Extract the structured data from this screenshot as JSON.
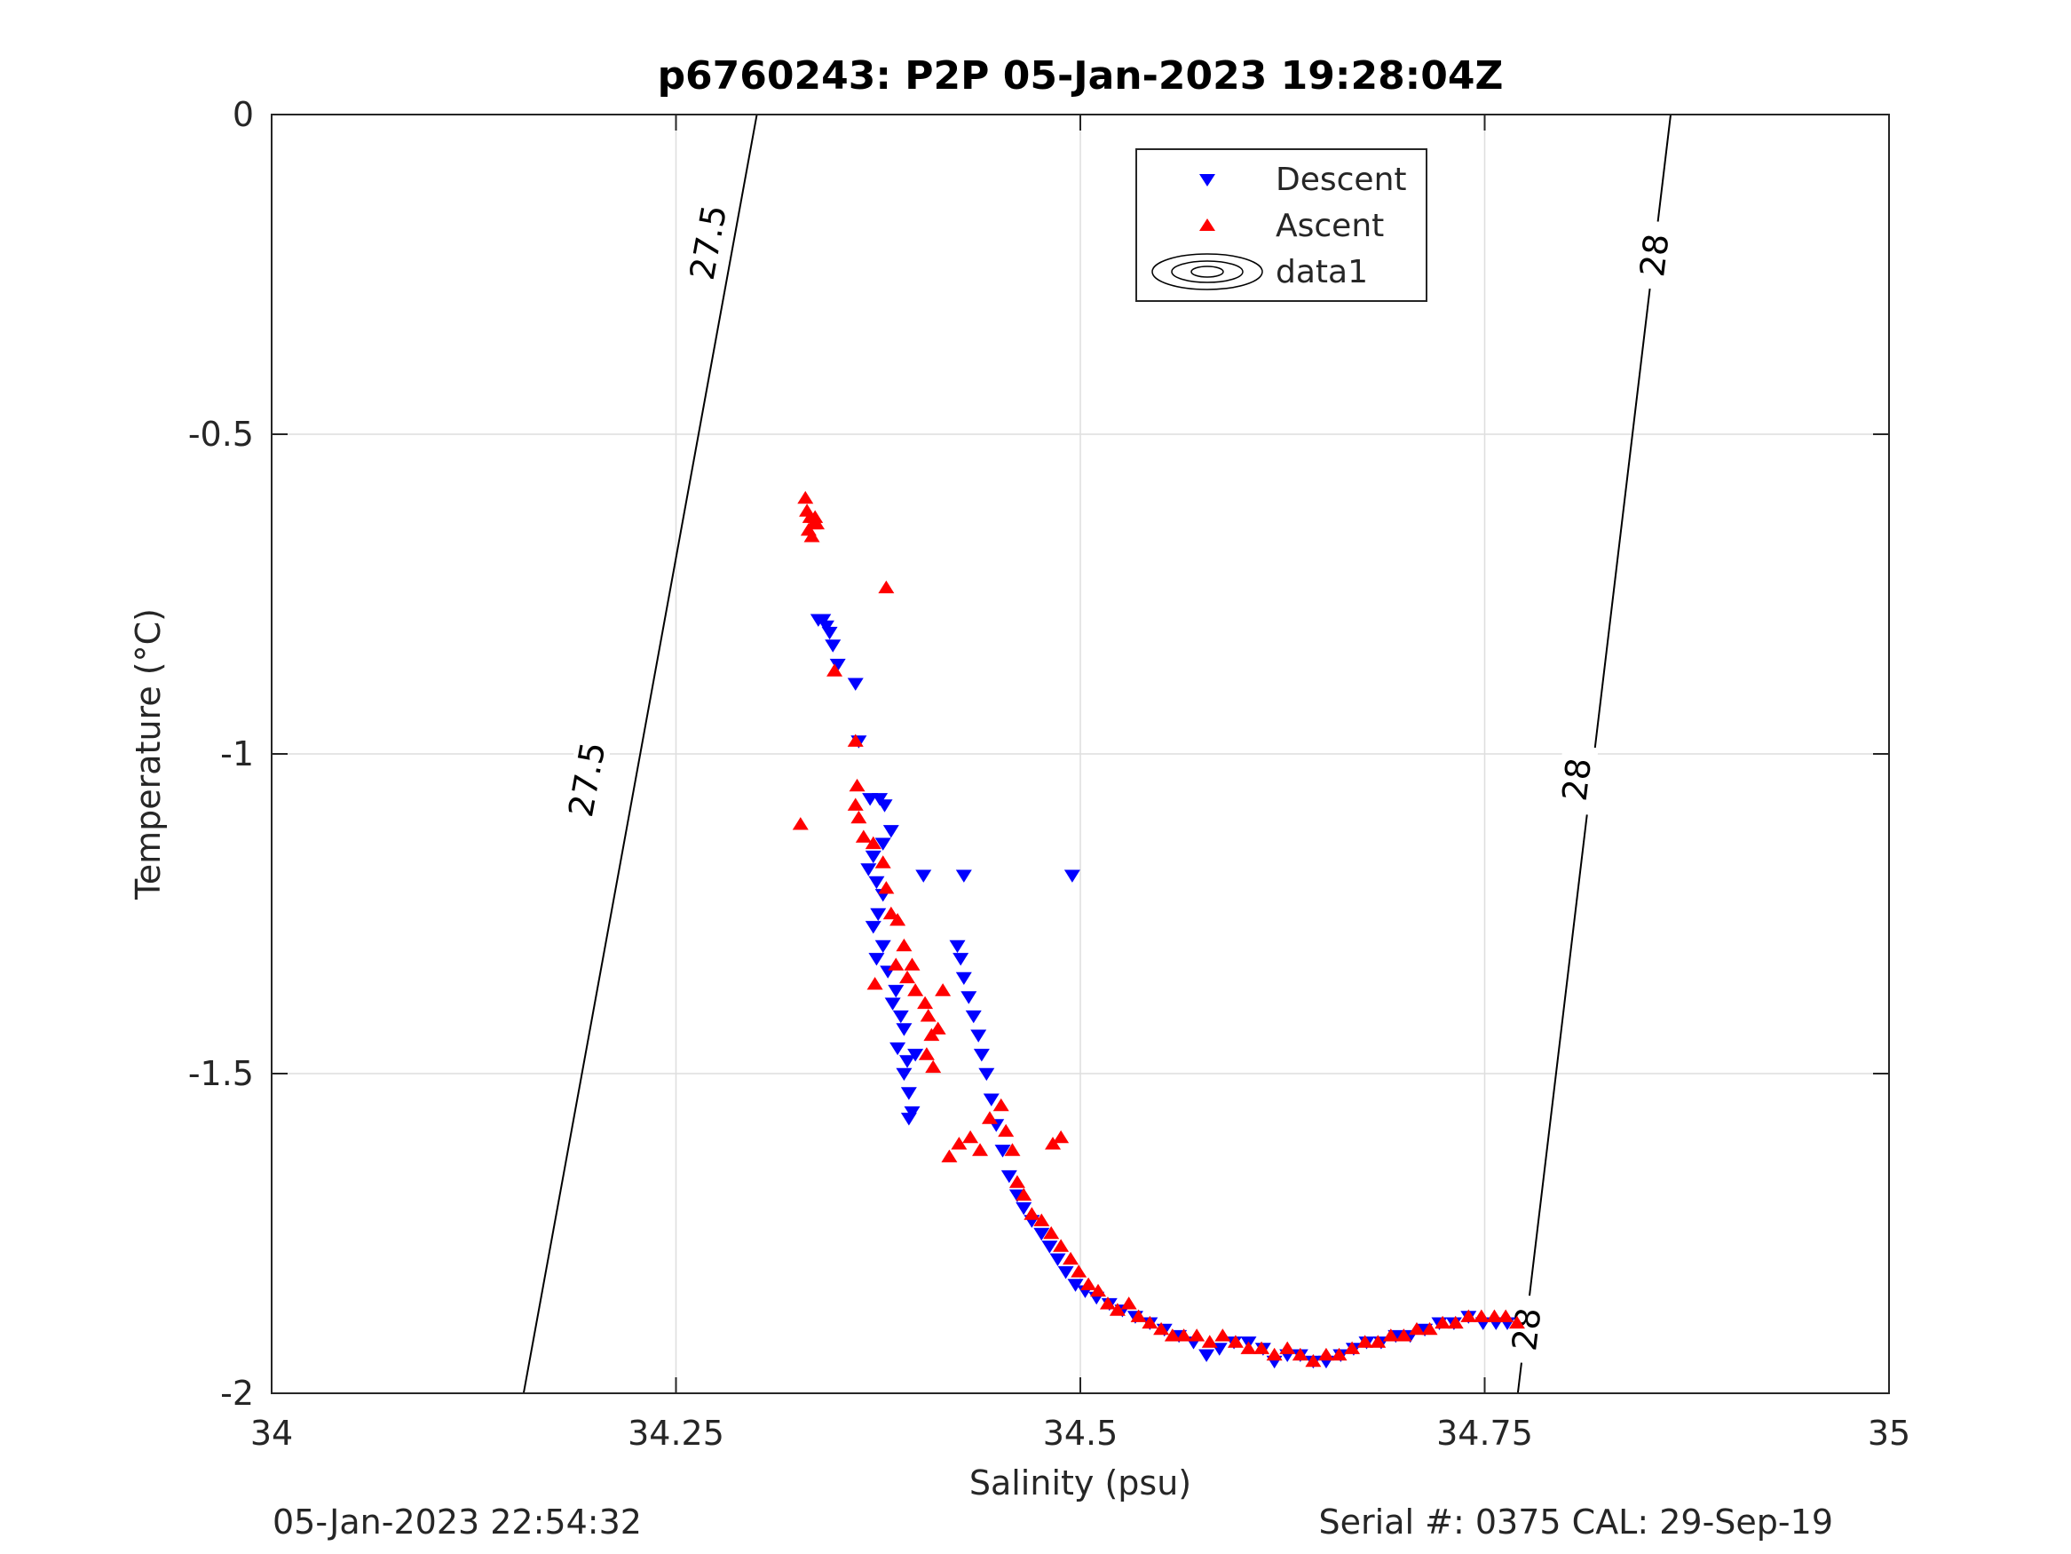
{
  "chart_data": {
    "type": "scatter",
    "title": "p6760243: P2P 05-Jan-2023 19:28:04Z",
    "xlabel": "Salinity (psu)",
    "ylabel": "Temperature (°C)",
    "xlim": [
      34,
      35
    ],
    "ylim": [
      -2,
      0
    ],
    "xticks": [
      34,
      34.25,
      34.5,
      34.75,
      35
    ],
    "xtick_labels": [
      "34",
      "34.25",
      "34.5",
      "34.75",
      "35"
    ],
    "yticks": [
      0,
      -0.5,
      -1,
      -1.5,
      -2
    ],
    "ytick_labels": [
      "0",
      "-0.5",
      "-1",
      "-1.5",
      "-2"
    ],
    "grid": true,
    "legend_position": "top",
    "legend": [
      {
        "label": "Descent",
        "marker": "triangle-down",
        "color": "#0000ff"
      },
      {
        "label": "Ascent",
        "marker": "triangle-up",
        "color": "#ff0000"
      },
      {
        "label": "data1",
        "marker": "contour",
        "color": "#000000"
      }
    ],
    "contours": [
      {
        "label": "27.5",
        "points": [
          [
            34.1558,
            -2
          ],
          [
            34.3,
            0
          ]
        ],
        "label_positions": [
          [
            34.27,
            -0.2
          ],
          [
            34.195,
            -1.04
          ]
        ]
      },
      {
        "label": "28",
        "points": [
          [
            34.7705,
            -2
          ],
          [
            34.865,
            0
          ]
        ],
        "label_positions": [
          [
            34.855,
            -0.22
          ],
          [
            34.807,
            -1.04
          ],
          [
            34.776,
            -1.9
          ]
        ]
      }
    ],
    "series": [
      {
        "name": "Descent",
        "marker": "triangle-down",
        "color": "#0000ff",
        "points": [
          [
            34.338,
            -0.79
          ],
          [
            34.341,
            -0.79
          ],
          [
            34.343,
            -0.8
          ],
          [
            34.345,
            -0.81
          ],
          [
            34.347,
            -0.83
          ],
          [
            34.35,
            -0.86
          ],
          [
            34.361,
            -0.89
          ],
          [
            34.363,
            -0.98
          ],
          [
            34.37,
            -1.07
          ],
          [
            34.376,
            -1.07
          ],
          [
            34.379,
            -1.08
          ],
          [
            34.383,
            -1.12
          ],
          [
            34.378,
            -1.14
          ],
          [
            34.372,
            -1.16
          ],
          [
            34.369,
            -1.18
          ],
          [
            34.374,
            -1.2
          ],
          [
            34.378,
            -1.22
          ],
          [
            34.375,
            -1.25
          ],
          [
            34.372,
            -1.27
          ],
          [
            34.378,
            -1.3
          ],
          [
            34.374,
            -1.32
          ],
          [
            34.381,
            -1.34
          ],
          [
            34.386,
            -1.37
          ],
          [
            34.384,
            -1.39
          ],
          [
            34.389,
            -1.41
          ],
          [
            34.391,
            -1.43
          ],
          [
            34.387,
            -1.46
          ],
          [
            34.393,
            -1.48
          ],
          [
            34.391,
            -1.5
          ],
          [
            34.394,
            -1.53
          ],
          [
            34.396,
            -1.56
          ],
          [
            34.394,
            -1.57
          ],
          [
            34.398,
            -1.47
          ],
          [
            34.403,
            -1.19
          ],
          [
            34.428,
            -1.19
          ],
          [
            34.495,
            -1.19
          ],
          [
            34.424,
            -1.3
          ],
          [
            34.426,
            -1.32
          ],
          [
            34.428,
            -1.35
          ],
          [
            34.431,
            -1.38
          ],
          [
            34.434,
            -1.41
          ],
          [
            34.437,
            -1.44
          ],
          [
            34.439,
            -1.47
          ],
          [
            34.442,
            -1.5
          ],
          [
            34.445,
            -1.54
          ],
          [
            34.448,
            -1.58
          ],
          [
            34.452,
            -1.62
          ],
          [
            34.456,
            -1.66
          ],
          [
            34.461,
            -1.69
          ],
          [
            34.465,
            -1.71
          ],
          [
            34.47,
            -1.73
          ],
          [
            34.476,
            -1.75
          ],
          [
            34.481,
            -1.77
          ],
          [
            34.486,
            -1.79
          ],
          [
            34.491,
            -1.81
          ],
          [
            34.497,
            -1.83
          ],
          [
            34.503,
            -1.84
          ],
          [
            34.51,
            -1.85
          ],
          [
            34.518,
            -1.86
          ],
          [
            34.526,
            -1.87
          ],
          [
            34.534,
            -1.88
          ],
          [
            34.543,
            -1.89
          ],
          [
            34.552,
            -1.9
          ],
          [
            34.561,
            -1.91
          ],
          [
            34.57,
            -1.92
          ],
          [
            34.578,
            -1.94
          ],
          [
            34.586,
            -1.93
          ],
          [
            34.595,
            -1.92
          ],
          [
            34.604,
            -1.92
          ],
          [
            34.613,
            -1.93
          ],
          [
            34.62,
            -1.95
          ],
          [
            34.628,
            -1.94
          ],
          [
            34.636,
            -1.94
          ],
          [
            34.644,
            -1.95
          ],
          [
            34.652,
            -1.95
          ],
          [
            34.661,
            -1.94
          ],
          [
            34.669,
            -1.93
          ],
          [
            34.677,
            -1.92
          ],
          [
            34.686,
            -1.92
          ],
          [
            34.695,
            -1.91
          ],
          [
            34.704,
            -1.91
          ],
          [
            34.713,
            -1.9
          ],
          [
            34.722,
            -1.89
          ],
          [
            34.731,
            -1.89
          ],
          [
            34.74,
            -1.88
          ],
          [
            34.749,
            -1.89
          ],
          [
            34.757,
            -1.89
          ],
          [
            34.764,
            -1.89
          ]
        ]
      },
      {
        "name": "Ascent",
        "marker": "triangle-up",
        "color": "#ff0000",
        "points": [
          [
            34.33,
            -0.6
          ],
          [
            34.331,
            -0.62
          ],
          [
            34.333,
            -0.63
          ],
          [
            34.332,
            -0.65
          ],
          [
            34.335,
            -0.64
          ],
          [
            34.334,
            -0.66
          ],
          [
            34.336,
            -0.63
          ],
          [
            34.337,
            -0.64
          ],
          [
            34.348,
            -0.87
          ],
          [
            34.38,
            -0.74
          ],
          [
            34.327,
            -1.11
          ],
          [
            34.361,
            -0.98
          ],
          [
            34.362,
            -1.05
          ],
          [
            34.361,
            -1.08
          ],
          [
            34.363,
            -1.1
          ],
          [
            34.366,
            -1.13
          ],
          [
            34.372,
            -1.14
          ],
          [
            34.378,
            -1.17
          ],
          [
            34.38,
            -1.21
          ],
          [
            34.383,
            -1.25
          ],
          [
            34.387,
            -1.26
          ],
          [
            34.391,
            -1.3
          ],
          [
            34.386,
            -1.33
          ],
          [
            34.393,
            -1.35
          ],
          [
            34.398,
            -1.37
          ],
          [
            34.404,
            -1.39
          ],
          [
            34.406,
            -1.41
          ],
          [
            34.408,
            -1.44
          ],
          [
            34.412,
            -1.43
          ],
          [
            34.405,
            -1.47
          ],
          [
            34.409,
            -1.49
          ],
          [
            34.373,
            -1.36
          ],
          [
            34.396,
            -1.33
          ],
          [
            34.415,
            -1.37
          ],
          [
            34.419,
            -1.63
          ],
          [
            34.425,
            -1.61
          ],
          [
            34.432,
            -1.6
          ],
          [
            34.438,
            -1.62
          ],
          [
            34.444,
            -1.57
          ],
          [
            34.451,
            -1.55
          ],
          [
            34.454,
            -1.59
          ],
          [
            34.458,
            -1.62
          ],
          [
            34.488,
            -1.6
          ],
          [
            34.483,
            -1.61
          ],
          [
            34.461,
            -1.67
          ],
          [
            34.465,
            -1.69
          ],
          [
            34.47,
            -1.72
          ],
          [
            34.476,
            -1.73
          ],
          [
            34.482,
            -1.75
          ],
          [
            34.488,
            -1.77
          ],
          [
            34.494,
            -1.79
          ],
          [
            34.499,
            -1.81
          ],
          [
            34.505,
            -1.83
          ],
          [
            34.511,
            -1.84
          ],
          [
            34.517,
            -1.86
          ],
          [
            34.523,
            -1.87
          ],
          [
            34.53,
            -1.86
          ],
          [
            34.536,
            -1.88
          ],
          [
            34.543,
            -1.89
          ],
          [
            34.55,
            -1.9
          ],
          [
            34.557,
            -1.91
          ],
          [
            34.564,
            -1.91
          ],
          [
            34.572,
            -1.91
          ],
          [
            34.58,
            -1.92
          ],
          [
            34.588,
            -1.91
          ],
          [
            34.596,
            -1.92
          ],
          [
            34.604,
            -1.93
          ],
          [
            34.612,
            -1.93
          ],
          [
            34.62,
            -1.94
          ],
          [
            34.628,
            -1.93
          ],
          [
            34.636,
            -1.94
          ],
          [
            34.644,
            -1.95
          ],
          [
            34.652,
            -1.94
          ],
          [
            34.66,
            -1.94
          ],
          [
            34.668,
            -1.93
          ],
          [
            34.676,
            -1.92
          ],
          [
            34.684,
            -1.92
          ],
          [
            34.692,
            -1.91
          ],
          [
            34.7,
            -1.91
          ],
          [
            34.708,
            -1.9
          ],
          [
            34.716,
            -1.9
          ],
          [
            34.724,
            -1.89
          ],
          [
            34.732,
            -1.89
          ],
          [
            34.74,
            -1.88
          ],
          [
            34.748,
            -1.88
          ],
          [
            34.756,
            -1.88
          ],
          [
            34.763,
            -1.88
          ],
          [
            34.77,
            -1.89
          ]
        ]
      }
    ]
  },
  "footer": {
    "timestamp": "05-Jan-2023 22:54:32",
    "serial": "Serial #: 0375  CAL: 29-Sep-19"
  }
}
